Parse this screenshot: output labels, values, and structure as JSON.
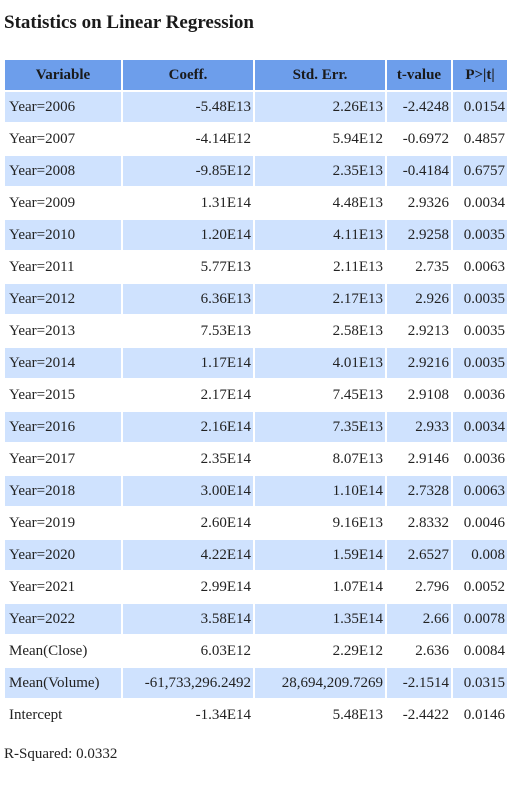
{
  "title": "Statistics on Linear Regression",
  "headers": [
    "Variable",
    "Coeff.",
    "Std. Err.",
    "t-value",
    "P>|t|"
  ],
  "rows": [
    [
      "Year=2006",
      "-5.48E13",
      "2.26E13",
      "-2.4248",
      "0.0154"
    ],
    [
      "Year=2007",
      "-4.14E12",
      "5.94E12",
      "-0.6972",
      "0.4857"
    ],
    [
      "Year=2008",
      "-9.85E12",
      "2.35E13",
      "-0.4184",
      "0.6757"
    ],
    [
      "Year=2009",
      "1.31E14",
      "4.48E13",
      "2.9326",
      "0.0034"
    ],
    [
      "Year=2010",
      "1.20E14",
      "4.11E13",
      "2.9258",
      "0.0035"
    ],
    [
      "Year=2011",
      "5.77E13",
      "2.11E13",
      "2.735",
      "0.0063"
    ],
    [
      "Year=2012",
      "6.36E13",
      "2.17E13",
      "2.926",
      "0.0035"
    ],
    [
      "Year=2013",
      "7.53E13",
      "2.58E13",
      "2.9213",
      "0.0035"
    ],
    [
      "Year=2014",
      "1.17E14",
      "4.01E13",
      "2.9216",
      "0.0035"
    ],
    [
      "Year=2015",
      "2.17E14",
      "7.45E13",
      "2.9108",
      "0.0036"
    ],
    [
      "Year=2016",
      "2.16E14",
      "7.35E13",
      "2.933",
      "0.0034"
    ],
    [
      "Year=2017",
      "2.35E14",
      "8.07E13",
      "2.9146",
      "0.0036"
    ],
    [
      "Year=2018",
      "3.00E14",
      "1.10E14",
      "2.7328",
      "0.0063"
    ],
    [
      "Year=2019",
      "2.60E14",
      "9.16E13",
      "2.8332",
      "0.0046"
    ],
    [
      "Year=2020",
      "4.22E14",
      "1.59E14",
      "2.6527",
      "0.008"
    ],
    [
      "Year=2021",
      "2.99E14",
      "1.07E14",
      "2.796",
      "0.0052"
    ],
    [
      "Year=2022",
      "3.58E14",
      "1.35E14",
      "2.66",
      "0.0078"
    ],
    [
      "Mean(Close)",
      "6.03E12",
      "2.29E12",
      "2.636",
      "0.0084"
    ],
    [
      "Mean(Volume)",
      "-61,733,296.2492",
      "28,694,209.7269",
      "-2.1514",
      "0.0315"
    ],
    [
      "Intercept",
      "-1.34E14",
      "5.48E13",
      "-2.4422",
      "0.0146"
    ]
  ],
  "r_squared": "R-Squared: 0.0332",
  "colors": {
    "header_bg": "#6d9eeb",
    "row_shade": "#cfe2fe",
    "row_plain": "#ffffff"
  }
}
